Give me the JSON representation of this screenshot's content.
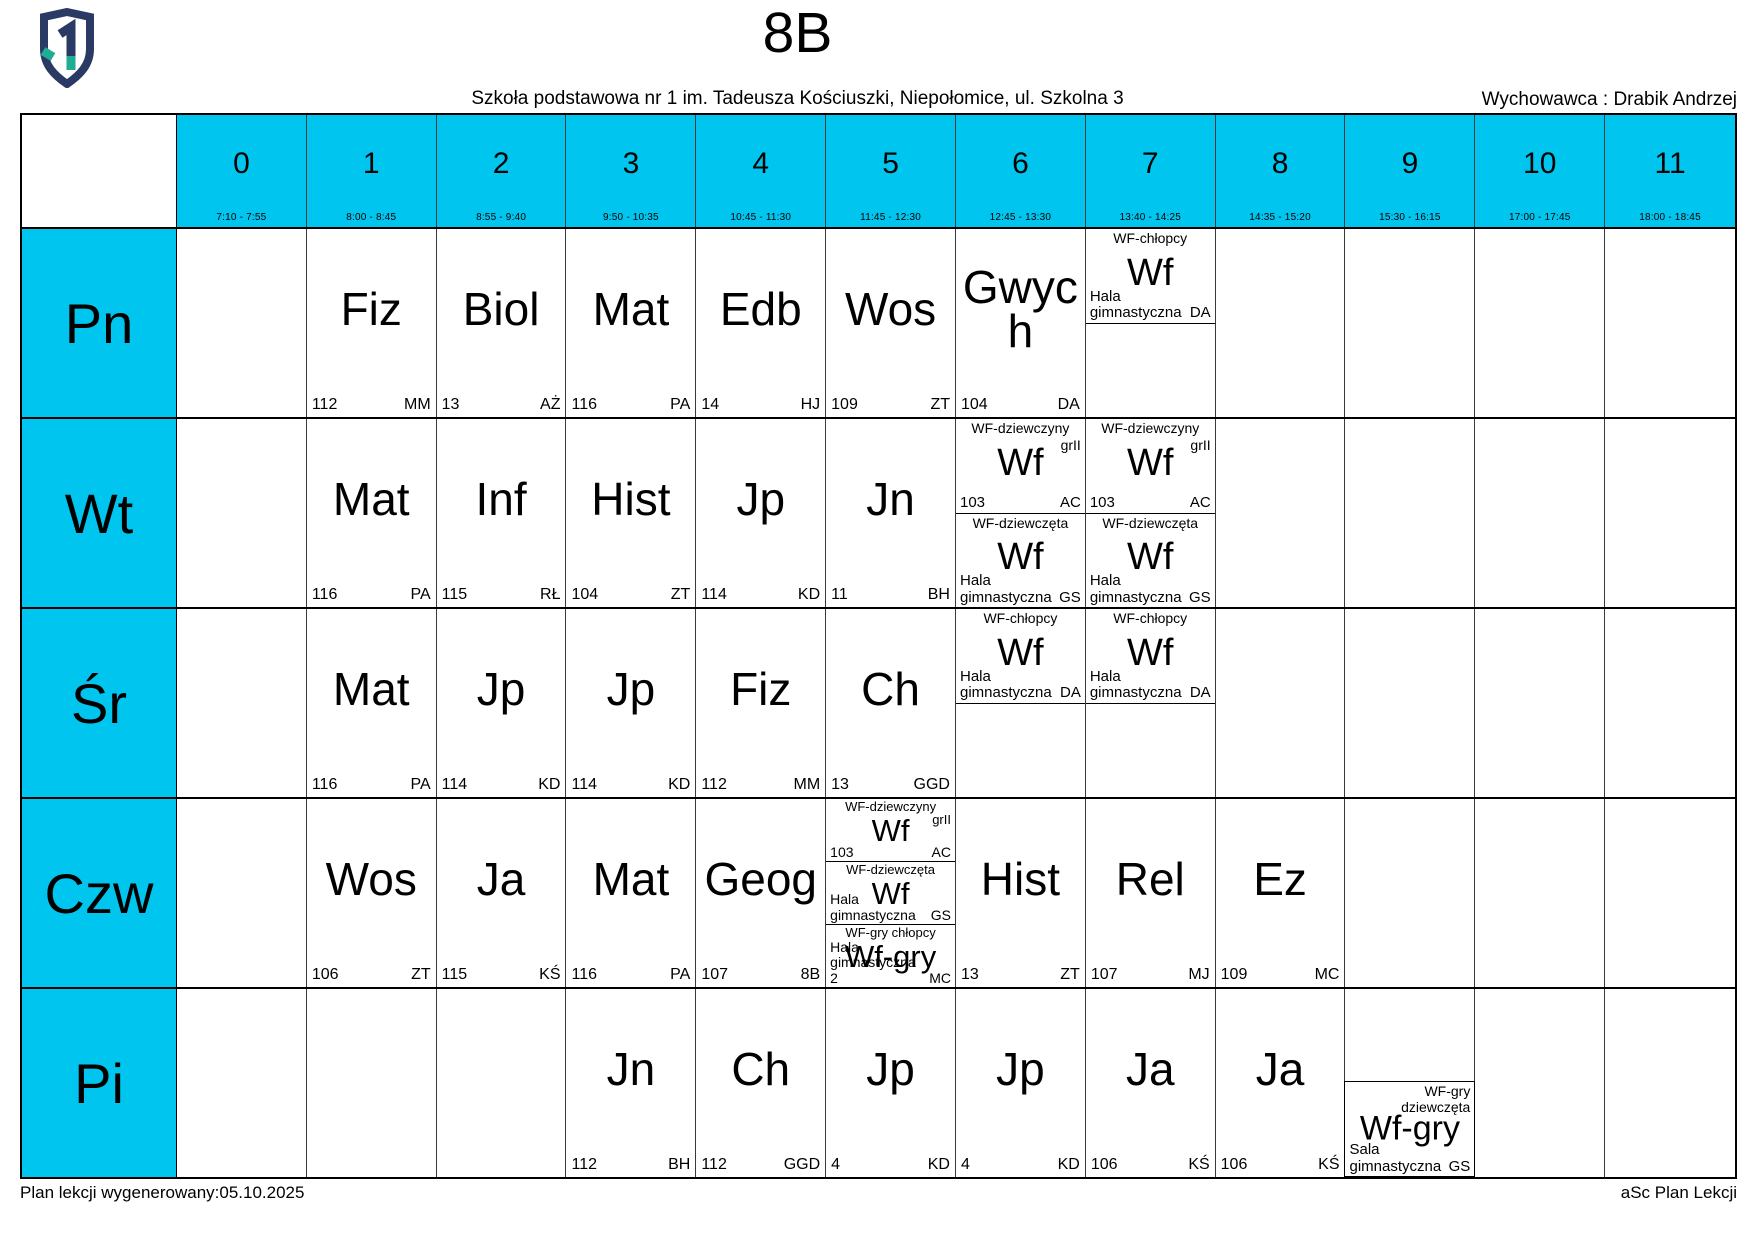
{
  "page": {
    "title": "8B",
    "school": "Szkoła podstawowa nr 1 im. Tadeusza Kościuszki, Niepołomice, ul. Szkolna 3",
    "tutor": "Wychowawca : Drabik Andrzej",
    "footer_left": "Plan lekcji wygenerowany:05.10.2025",
    "footer_right": "aSc Plan Lekcji"
  },
  "colors": {
    "accent_cyan": "#00c6ef",
    "logo_navy": "#2b3a64",
    "logo_teal": "#1fae93",
    "border": "#000000"
  },
  "icons": {
    "logo": "shield-number-1-icon"
  },
  "hours": [
    {
      "num": "0",
      "time": "7:10 - 7:55"
    },
    {
      "num": "1",
      "time": "8:00 - 8:45"
    },
    {
      "num": "2",
      "time": "8:55 - 9:40"
    },
    {
      "num": "3",
      "time": "9:50 - 10:35"
    },
    {
      "num": "4",
      "time": "10:45 - 11:30"
    },
    {
      "num": "5",
      "time": "11:45 - 12:30"
    },
    {
      "num": "6",
      "time": "12:45 - 13:30"
    },
    {
      "num": "7",
      "time": "13:40 - 14:25"
    },
    {
      "num": "8",
      "time": "14:35 - 15:20"
    },
    {
      "num": "9",
      "time": "15:30 - 16:15"
    },
    {
      "num": "10",
      "time": "17:00 - 17:45"
    },
    {
      "num": "11",
      "time": "18:00 - 18:45"
    }
  ],
  "days": [
    {
      "label": "Pn",
      "cells": {
        "1": {
          "type": "lesson",
          "subject": "Fiz",
          "room": "112",
          "teacher": "MM"
        },
        "2": {
          "type": "lesson",
          "subject": "Biol",
          "room": "13",
          "teacher": "AŻ"
        },
        "3": {
          "type": "lesson",
          "subject": "Mat",
          "room": "116",
          "teacher": "PA"
        },
        "4": {
          "type": "lesson",
          "subject": "Edb",
          "room": "14",
          "teacher": "HJ"
        },
        "5": {
          "type": "lesson",
          "subject": "Wos",
          "room": "109",
          "teacher": "ZT"
        },
        "6": {
          "type": "lesson",
          "subject": "Gwych",
          "room": "104",
          "teacher": "DA"
        },
        "7": {
          "type": "split",
          "parts": [
            {
              "group": "WF-chłopcy",
              "subject": "Wf",
              "room": "Hala gimnastyczna",
              "teacher": "DA"
            },
            {
              "empty": true
            }
          ]
        }
      }
    },
    {
      "label": "Wt",
      "cells": {
        "1": {
          "type": "lesson",
          "subject": "Mat",
          "room": "116",
          "teacher": "PA"
        },
        "2": {
          "type": "lesson",
          "subject": "Inf",
          "room": "115",
          "teacher": "RŁ"
        },
        "3": {
          "type": "lesson",
          "subject": "Hist",
          "room": "104",
          "teacher": "ZT"
        },
        "4": {
          "type": "lesson",
          "subject": "Jp",
          "room": "114",
          "teacher": "KD"
        },
        "5": {
          "type": "lesson",
          "subject": "Jn",
          "room": "11",
          "teacher": "BH"
        },
        "6": {
          "type": "split",
          "parts": [
            {
              "group": "WF-dziewczyny",
              "group2": "grII",
              "subject": "Wf",
              "room": "103",
              "teacher": "AC"
            },
            {
              "group": "WF-dziewczęta",
              "subject": "Wf",
              "room": "Hala gimnastyczna",
              "teacher": "GS"
            }
          ]
        },
        "7": {
          "type": "split",
          "parts": [
            {
              "group": "WF-dziewczyny",
              "group2": "grII",
              "subject": "Wf",
              "room": "103",
              "teacher": "AC"
            },
            {
              "group": "WF-dziewczęta",
              "subject": "Wf",
              "room": "Hala gimnastyczna",
              "teacher": "GS"
            }
          ]
        }
      }
    },
    {
      "label": "Śr",
      "cells": {
        "1": {
          "type": "lesson",
          "subject": "Mat",
          "room": "116",
          "teacher": "PA"
        },
        "2": {
          "type": "lesson",
          "subject": "Jp",
          "room": "114",
          "teacher": "KD"
        },
        "3": {
          "type": "lesson",
          "subject": "Jp",
          "room": "114",
          "teacher": "KD"
        },
        "4": {
          "type": "lesson",
          "subject": "Fiz",
          "room": "112",
          "teacher": "MM"
        },
        "5": {
          "type": "lesson",
          "subject": "Ch",
          "room": "13",
          "teacher": "GGD"
        },
        "6": {
          "type": "split",
          "parts": [
            {
              "group": "WF-chłopcy",
              "subject": "Wf",
              "room": "Hala gimnastyczna",
              "teacher": "DA"
            },
            {
              "empty": true
            }
          ]
        },
        "7": {
          "type": "split",
          "parts": [
            {
              "group": "WF-chłopcy",
              "subject": "Wf",
              "room": "Hala gimnastyczna",
              "teacher": "DA"
            },
            {
              "empty": true
            }
          ]
        }
      }
    },
    {
      "label": "Czw",
      "cells": {
        "1": {
          "type": "lesson",
          "subject": "Wos",
          "room": "106",
          "teacher": "ZT"
        },
        "2": {
          "type": "lesson",
          "subject": "Ja",
          "room": "115",
          "teacher": "KŚ"
        },
        "3": {
          "type": "lesson",
          "subject": "Mat",
          "room": "116",
          "teacher": "PA"
        },
        "4": {
          "type": "lesson",
          "subject": "Geog",
          "room": "107",
          "teacher": "8B"
        },
        "5": {
          "type": "split",
          "parts": [
            {
              "group": "WF-dziewczyny",
              "group2": "grII",
              "subject": "Wf",
              "room": "103",
              "teacher": "AC"
            },
            {
              "group": "WF-dziewczęta",
              "subject": "Wf",
              "room": "Hala gimnastyczna",
              "teacher": "GS"
            },
            {
              "group": "WF-gry chłopcy",
              "subject": "Wf-gry",
              "room": "Hala gimnastyczna 2",
              "teacher": "MC"
            }
          ]
        },
        "6": {
          "type": "lesson",
          "subject": "Hist",
          "room": "13",
          "teacher": "ZT"
        },
        "7": {
          "type": "lesson",
          "subject": "Rel",
          "room": "107",
          "teacher": "MJ"
        },
        "8": {
          "type": "lesson",
          "subject": "Ez",
          "room": "109",
          "teacher": "MC"
        }
      }
    },
    {
      "label": "Pi",
      "cells": {
        "3": {
          "type": "lesson",
          "subject": "Jn",
          "room": "112",
          "teacher": "BH"
        },
        "4": {
          "type": "lesson",
          "subject": "Ch",
          "room": "112",
          "teacher": "GGD"
        },
        "5": {
          "type": "lesson",
          "subject": "Jp",
          "room": "4",
          "teacher": "KD"
        },
        "6": {
          "type": "lesson",
          "subject": "Jp",
          "room": "4",
          "teacher": "KD"
        },
        "7": {
          "type": "lesson",
          "subject": "Ja",
          "room": "106",
          "teacher": "KŚ"
        },
        "8": {
          "type": "lesson",
          "subject": "Ja",
          "room": "106",
          "teacher": "KŚ"
        },
        "9": {
          "type": "partial",
          "group": "WF-gry dziewczęta",
          "subject": "Wf-gry",
          "room": "Sala gimnastyczna",
          "teacher": "GS"
        }
      }
    }
  ]
}
